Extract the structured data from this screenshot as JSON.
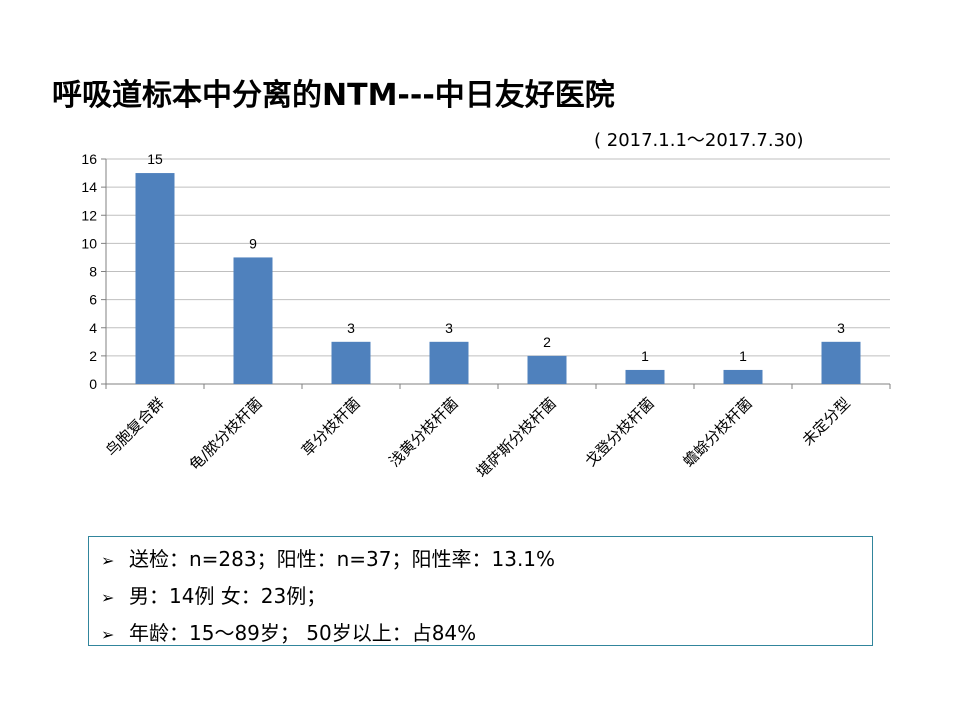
{
  "title": "呼吸道标本中分离的NTM---中日友好医院",
  "date_range": "( 2017.1.1～2017.7.30)",
  "colors": {
    "bar": "#4f81bd",
    "grid": "#bfbfbf",
    "box_border": "#31859c"
  },
  "chart_data": {
    "type": "bar",
    "categories": [
      "鸟胞复合群",
      "龟/脓分枝杆菌",
      "草分枝杆菌",
      "浅黄分枝杆菌",
      "堪萨斯分枝杆菌",
      "戈登分枝杆菌",
      "蟾蜍分枝杆菌",
      "未定分型"
    ],
    "values": [
      15,
      9,
      3,
      3,
      2,
      1,
      1,
      3
    ],
    "yticks": [
      0,
      2,
      4,
      6,
      8,
      10,
      12,
      14,
      16
    ],
    "ylim": [
      0,
      16
    ],
    "grid": true,
    "data_labels": true,
    "legend": false
  },
  "info": {
    "bullet": "➢",
    "lines": [
      "送检：n=283；阳性：n=37；阳性率：13.1%",
      "男：14例    女：23例；",
      "年龄：15～89岁；  50岁以上：占84%"
    ]
  }
}
